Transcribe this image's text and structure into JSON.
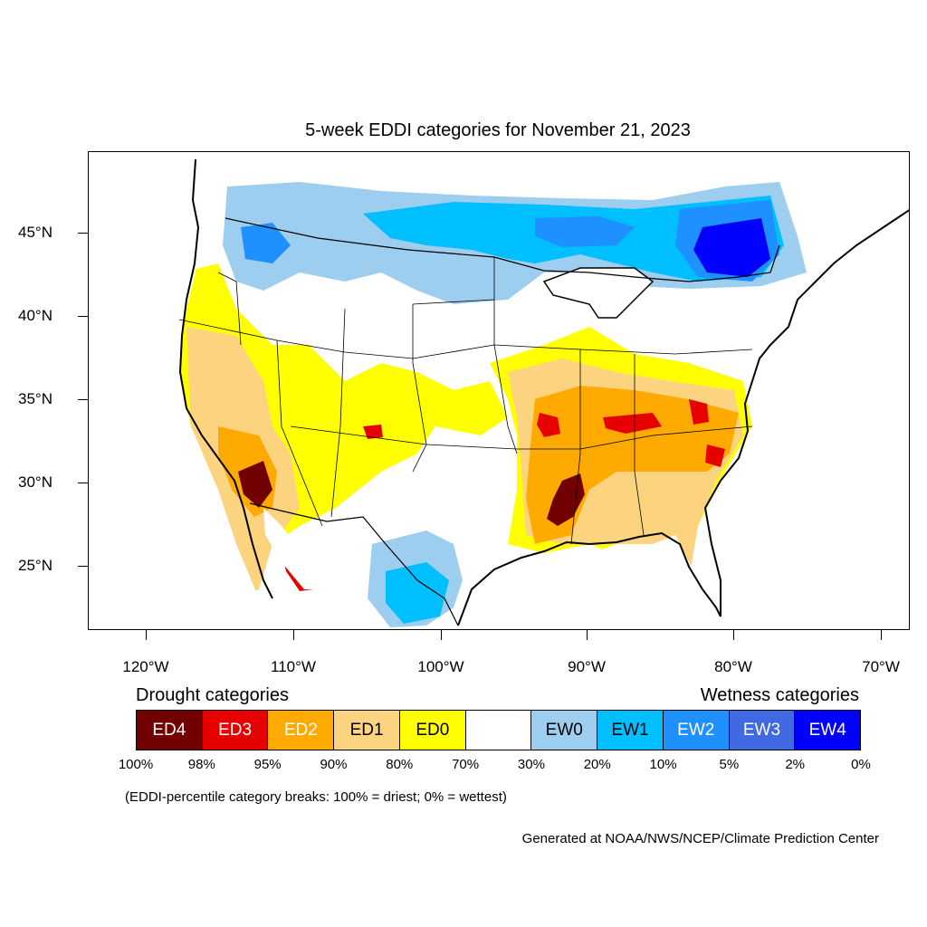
{
  "title": "5-week EDDI categories for November 21, 2023",
  "map": {
    "lat_labels": [
      "45°N",
      "40°N",
      "35°N",
      "30°N",
      "25°N"
    ],
    "lon_labels": [
      "120°W",
      "110°W",
      "100°W",
      "90°W",
      "80°W",
      "70°W"
    ]
  },
  "legend": {
    "drought_heading": "Drought categories",
    "wetness_heading": "Wetness categories",
    "categories": [
      {
        "label": "ED4",
        "color": "#730000",
        "text_color": "#ffffff"
      },
      {
        "label": "ED3",
        "color": "#e60000",
        "text_color": "#ffffff"
      },
      {
        "label": "ED2",
        "color": "#ffaa00",
        "text_color": "#ffffff"
      },
      {
        "label": "ED1",
        "color": "#fcd37f",
        "text_color": "#000000"
      },
      {
        "label": "ED0",
        "color": "#ffff00",
        "text_color": "#000000"
      },
      {
        "label": "",
        "color": "#ffffff",
        "text_color": "#000000"
      },
      {
        "label": "EW0",
        "color": "#9dcdef",
        "text_color": "#000000"
      },
      {
        "label": "EW1",
        "color": "#00bfff",
        "text_color": "#000000"
      },
      {
        "label": "EW2",
        "color": "#1e90ff",
        "text_color": "#ffffff"
      },
      {
        "label": "EW3",
        "color": "#4169e1",
        "text_color": "#ffffff"
      },
      {
        "label": "EW4",
        "color": "#0000ff",
        "text_color": "#ffffff"
      }
    ],
    "breaks": [
      "100%",
      "98%",
      "95%",
      "90%",
      "80%",
      "70%",
      "30%",
      "20%",
      "10%",
      "5%",
      "2%",
      "0%"
    ]
  },
  "note": "(EDDI-percentile category breaks: 100% = driest; 0% = wettest)",
  "credit": "Generated at NOAA/NWS/NCEP/Climate Prediction Center"
}
